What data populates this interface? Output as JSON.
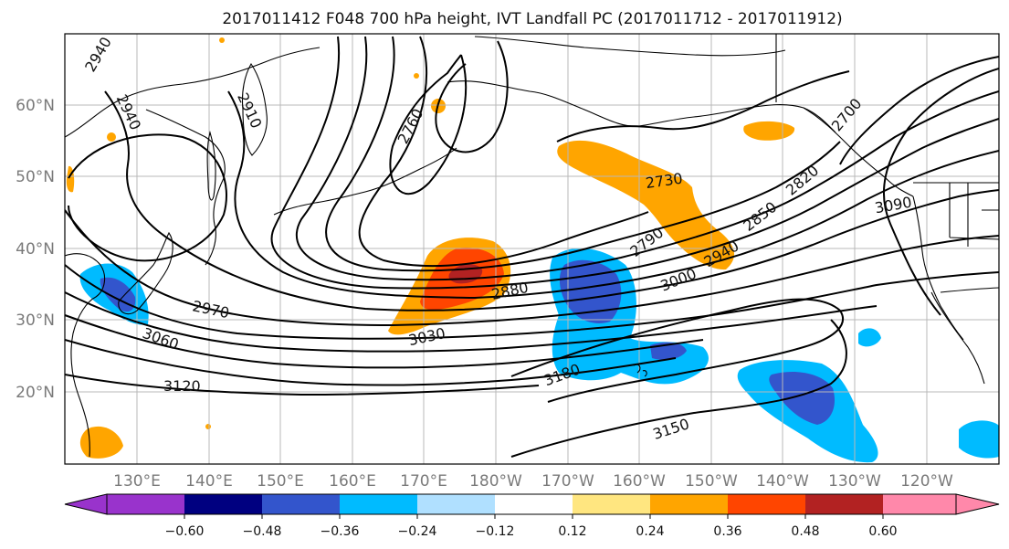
{
  "title": "2017011412 F048 700 hPa height, IVT Landfall PC (2017011712 - 2017011912)",
  "lat_labels": [
    "60°N",
    "50°N",
    "40°N",
    "30°N",
    "20°N"
  ],
  "lon_labels": [
    "130°E",
    "140°E",
    "150°E",
    "160°E",
    "170°E",
    "180°W",
    "170°W",
    "160°W",
    "150°W",
    "140°W",
    "130°W",
    "120°W"
  ],
  "contour_labels": [
    "2940",
    "2940",
    "2910",
    "2760",
    "2730",
    "2790",
    "2850",
    "2820",
    "2700",
    "3090",
    "2940",
    "3000",
    "2880",
    "2970",
    "3030",
    "3060",
    "3120",
    "3180",
    "3150"
  ],
  "colorbar": {
    "ticks": [
      "−0.60",
      "−0.48",
      "−0.36",
      "−0.24",
      "−0.12",
      "0.12",
      "0.24",
      "0.36",
      "0.48",
      "0.60"
    ],
    "colors": [
      "#9933cc",
      "#000080",
      "#3355cc",
      "#00bbff",
      "#b0e0ff",
      "#ffffff",
      "#ffe680",
      "#ffa500",
      "#ff4500",
      "#b22222",
      "#ff88aa",
      "#ff88aa"
    ]
  },
  "colors": {
    "neg_light": "#00bbff",
    "neg_mid": "#3355cc",
    "pos_light": "#ffa500",
    "pos_mid": "#ff4500",
    "pos_strong": "#b22222"
  }
}
